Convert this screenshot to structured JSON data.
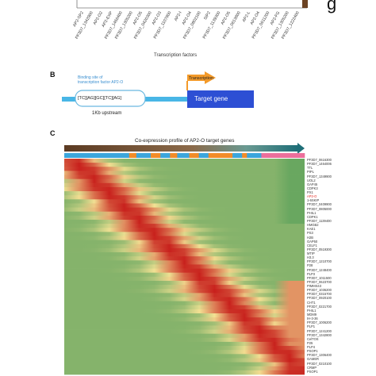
{
  "panel_a": {
    "tf_labels": [
      "AP2-SP2",
      "PF3D7_1342900",
      "AP2-O2",
      "AP2-EXP",
      "PF3D7_1466400",
      "PF3D7_1305200",
      "AP2-O5",
      "PF3D7_0420300",
      "AP2-O3",
      "PF3D7_1107800",
      "AP2-I",
      "AP2-O4",
      "PF3D7_0802100",
      "SIP2",
      "PF3D7_1139300",
      "AP2-O5",
      "PF3D7_0613800",
      "AP2-L",
      "AP2-O4",
      "PF3D7_0611200",
      "AP2-FG",
      "PF3D7_1305200",
      "PF3D7_1222400"
    ],
    "x_axis_title": "Transcription factors",
    "corner_mark": "g"
  },
  "panel_b": {
    "label": "B",
    "binding_site_text": "Binding site of\ntranscription factor AP2-O",
    "motif": "[TC][AG][GC][TC][AG]",
    "transcription_label": "Transcription",
    "target_gene_label": "Target gene",
    "upstream_label": "1Kb upstream"
  },
  "panel_c": {
    "label": "C",
    "title": "Co-expression profile of AP2-O target genes",
    "gene_labels": [
      "PF3D7_0616300",
      "PF3D7_1464006",
      "TTL",
      "PIPL",
      "PF3D7_1349900",
      "UOL2",
      "GAP45",
      "CDPK3",
      "PX1",
      "AP2-O",
      "1-6SKIP",
      "PF3D7_0409900",
      "PF3D7_0805000",
      "PHIL1",
      "CDPK1",
      "PF3D7_1139400",
      "HMGB2",
      "KAE1",
      "PS3",
      "H2B",
      "GAP50",
      "CELF1",
      "PF3D7_0519300",
      "MTIP",
      "H3.3",
      "PF3D7_1210700",
      "P28",
      "PF3D7_1248400",
      "PLP3",
      "PF3D7_1011500",
      "PF3D7_0623700",
      "PIMMS43",
      "PF3D7_1036200",
      "PF3D7_0315700",
      "PF3D7_0920100",
      "CHT1",
      "PF3D7_0221700",
      "PHIL1",
      "MDM9",
      "IH-3-36",
      "PF3D7_1006200",
      "PLP1",
      "PF3D7_1241200",
      "PF3D7_1342800",
      "CelTOS",
      "P25",
      "PLP4",
      "PSOP1",
      "PF3D7_1306400",
      "GAMER",
      "PF3D7_0210100",
      "CRMP",
      "PSOP1"
    ],
    "highlight_index": 9,
    "colors": {
      "red": "#c8201c",
      "yellow": "#f3e294",
      "green": "#2e8e4a",
      "brown": "#5a3a22",
      "teal": "#1a6f76",
      "blue_bar": "#3ba6dc",
      "orange_bar": "#f28c28",
      "pink_bar": "#ec6f9b"
    }
  }
}
